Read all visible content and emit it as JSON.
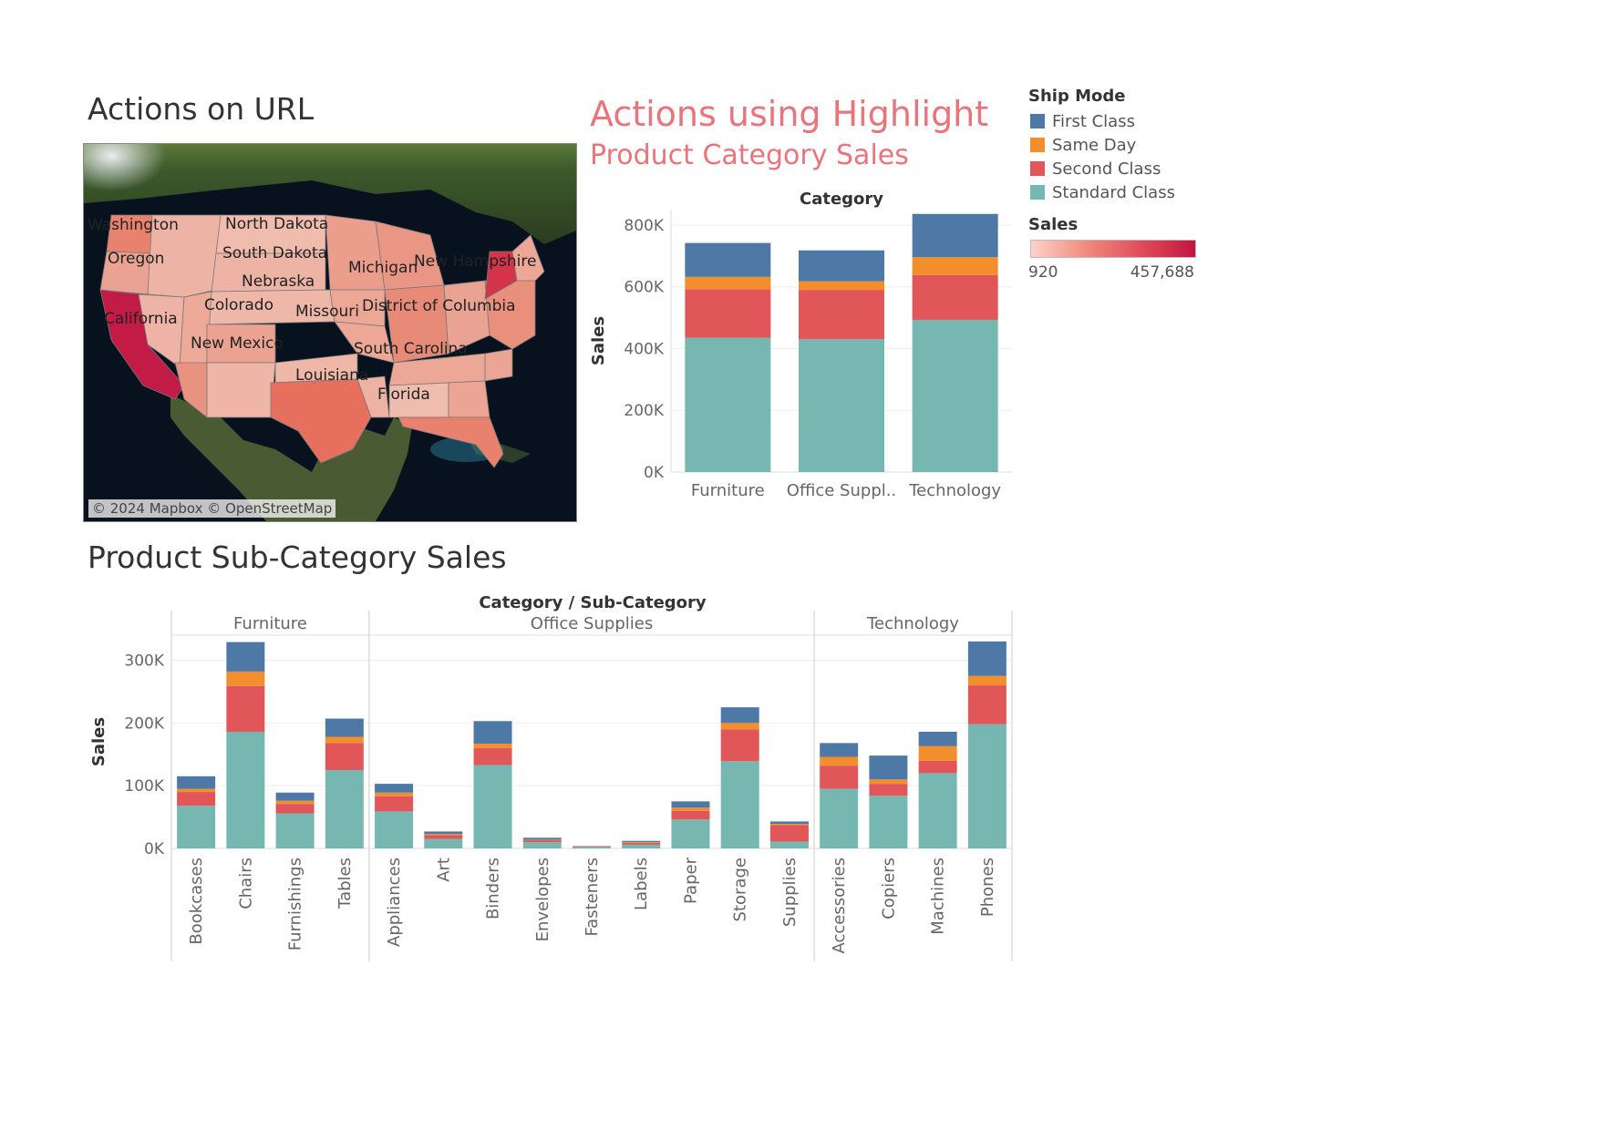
{
  "titles": {
    "url": "Actions on URL",
    "highlight": "Actions using Highlight",
    "category": "Product Category Sales",
    "subcategory": "Product Sub-Category Sales"
  },
  "map": {
    "copyright": "© 2024 Mapbox © OpenStreetMap",
    "state_labels": [
      "Washington",
      "North Dakota",
      "Oregon",
      "South Dakota",
      "Michigan",
      "New Hampshire",
      "Nebraska",
      "California",
      "Colorado",
      "Missouri",
      "District of Columbia",
      "New Mexico",
      "South Carolina",
      "Louisiana",
      "Florida"
    ]
  },
  "legend": {
    "ship_mode_title": "Ship Mode",
    "items": [
      {
        "label": "First Class",
        "color": "#4e79a7"
      },
      {
        "label": "Same Day",
        "color": "#f28e2b"
      },
      {
        "label": "Second Class",
        "color": "#e15759"
      },
      {
        "label": "Standard Class",
        "color": "#76b7b2"
      }
    ],
    "sales_title": "Sales",
    "sales_min": "920",
    "sales_max": "457,688"
  },
  "chart_data": [
    {
      "type": "bar",
      "stacked": true,
      "header": "Category",
      "ylabel": "Sales",
      "ylim": [
        0,
        850000
      ],
      "yticks": [
        0,
        200000,
        400000,
        600000,
        800000
      ],
      "ytick_labels": [
        "0K",
        "200K",
        "400K",
        "600K",
        "800K"
      ],
      "categories": [
        "Furniture",
        "Office Suppl..",
        "Technology"
      ],
      "series": [
        {
          "name": "Standard Class",
          "color": "#76b7b2",
          "values": [
            435000,
            430000,
            493000
          ]
        },
        {
          "name": "Second Class",
          "color": "#e15759",
          "values": [
            157000,
            160000,
            145000
          ]
        },
        {
          "name": "Same Day",
          "color": "#f28e2b",
          "values": [
            40000,
            28000,
            58000
          ]
        },
        {
          "name": "First Class",
          "color": "#4e79a7",
          "values": [
            110000,
            100000,
            140000
          ]
        }
      ]
    },
    {
      "type": "bar",
      "stacked": true,
      "header": "Category / Sub-Category",
      "ylabel": "Sales",
      "ylim": [
        0,
        340000
      ],
      "yticks": [
        0,
        100000,
        200000,
        300000
      ],
      "ytick_labels": [
        "0K",
        "100K",
        "200K",
        "300K"
      ],
      "groups": [
        {
          "name": "Furniture",
          "categories": [
            "Bookcases",
            "Chairs",
            "Furnishings",
            "Tables"
          ]
        },
        {
          "name": "Office Supplies",
          "categories": [
            "Appliances",
            "Art",
            "Binders",
            "Envelopes",
            "Fasteners",
            "Labels",
            "Paper",
            "Storage",
            "Supplies"
          ]
        },
        {
          "name": "Technology",
          "categories": [
            "Accessories",
            "Copiers",
            "Machines",
            "Phones"
          ]
        }
      ],
      "series": [
        {
          "name": "Standard Class",
          "color": "#76b7b2",
          "values": [
            68000,
            186000,
            56000,
            125000,
            59000,
            15000,
            133000,
            10000,
            2000,
            6000,
            46000,
            139000,
            11000,
            95000,
            84000,
            120000,
            198000
          ]
        },
        {
          "name": "Second Class",
          "color": "#e15759",
          "values": [
            22000,
            73000,
            15000,
            43000,
            24000,
            6000,
            27000,
            3000,
            1000,
            3000,
            14000,
            51000,
            26000,
            37000,
            19000,
            20000,
            62000
          ]
        },
        {
          "name": "Same Day",
          "color": "#f28e2b",
          "values": [
            5000,
            23000,
            5000,
            10000,
            6000,
            2000,
            7000,
            1000,
            200,
            1000,
            5000,
            10000,
            2000,
            14000,
            7000,
            23000,
            15000
          ]
        },
        {
          "name": "First Class",
          "color": "#4e79a7",
          "values": [
            20000,
            47000,
            13000,
            29000,
            14000,
            4000,
            36000,
            3000,
            500,
            2000,
            10000,
            25000,
            4000,
            22000,
            38000,
            23000,
            55000
          ]
        }
      ]
    }
  ]
}
